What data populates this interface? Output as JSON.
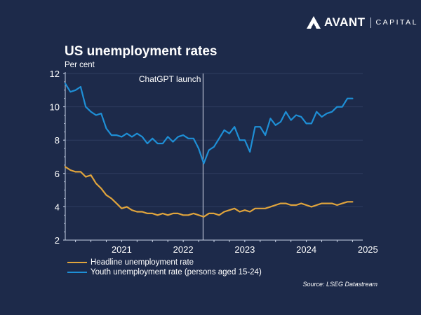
{
  "brand": {
    "name": "AVANT",
    "suffix": "CAPITAL"
  },
  "chart_data": {
    "type": "line",
    "title": "US unemployment rates",
    "ylabel": "Per cent",
    "xlabel": "",
    "ylim": [
      2,
      12
    ],
    "yticks": [
      2,
      4,
      6,
      8,
      10,
      12
    ],
    "xrange": [
      "2020-08",
      "2025-06"
    ],
    "xtick_labels": [
      "2021",
      "2022",
      "2023",
      "2024",
      "2025"
    ],
    "grid": true,
    "legend_position": "bottom-left",
    "annotation": {
      "label": "ChatGPT launch",
      "x": "2022-11"
    },
    "x": [
      "2020-08",
      "2020-09",
      "2020-10",
      "2020-11",
      "2020-12",
      "2021-01",
      "2021-02",
      "2021-03",
      "2021-04",
      "2021-05",
      "2021-06",
      "2021-07",
      "2021-08",
      "2021-09",
      "2021-10",
      "2021-11",
      "2021-12",
      "2022-01",
      "2022-02",
      "2022-03",
      "2022-04",
      "2022-05",
      "2022-06",
      "2022-07",
      "2022-08",
      "2022-09",
      "2022-10",
      "2022-11",
      "2022-12",
      "2023-01",
      "2023-02",
      "2023-03",
      "2023-04",
      "2023-05",
      "2023-06",
      "2023-07",
      "2023-08",
      "2023-09",
      "2023-10",
      "2023-11",
      "2023-12",
      "2024-01",
      "2024-02",
      "2024-03",
      "2024-04",
      "2024-05",
      "2024-06",
      "2024-07",
      "2024-08",
      "2024-09",
      "2024-10",
      "2024-11",
      "2024-12",
      "2025-01",
      "2025-02",
      "2025-03",
      "2025-04"
    ],
    "series": [
      {
        "name": "Headline unemployment rate",
        "color": "#e0a43c",
        "values": [
          6.4,
          6.2,
          6.1,
          6.1,
          5.8,
          5.9,
          5.4,
          5.1,
          4.7,
          4.5,
          4.2,
          3.9,
          4.0,
          3.8,
          3.7,
          3.7,
          3.6,
          3.6,
          3.5,
          3.6,
          3.5,
          3.6,
          3.6,
          3.5,
          3.5,
          3.6,
          3.5,
          3.4,
          3.6,
          3.6,
          3.5,
          3.7,
          3.8,
          3.9,
          3.7,
          3.8,
          3.7,
          3.9,
          3.9,
          3.9,
          4.0,
          4.1,
          4.2,
          4.2,
          4.1,
          4.1,
          4.2,
          4.1,
          4.0,
          4.1,
          4.2,
          4.2,
          4.2,
          4.1,
          4.2,
          4.3,
          4.3
        ]
      },
      {
        "name": "Youth unemployment rate (persons aged 15-24)",
        "color": "#1e8fd6",
        "values": [
          11.4,
          10.9,
          11.0,
          11.2,
          10.0,
          9.7,
          9.5,
          9.6,
          8.7,
          8.3,
          8.3,
          8.2,
          8.4,
          8.2,
          8.4,
          8.2,
          7.8,
          8.1,
          7.8,
          7.8,
          8.2,
          7.9,
          8.2,
          8.3,
          8.1,
          8.1,
          7.5,
          6.6,
          7.4,
          7.6,
          8.1,
          8.6,
          8.4,
          8.8,
          8.0,
          8.0,
          7.3,
          8.8,
          8.8,
          8.3,
          9.3,
          8.9,
          9.1,
          9.7,
          9.2,
          9.5,
          9.4,
          9.0,
          9.0,
          9.7,
          9.4,
          9.6,
          9.7,
          10.0,
          10.0,
          10.5,
          10.5
        ]
      }
    ]
  },
  "legend": [
    {
      "label": "Headline unemployment rate"
    },
    {
      "label": "Youth unemployment rate (persons aged 15-24)"
    }
  ],
  "source": "Source: LSEG Datastream"
}
